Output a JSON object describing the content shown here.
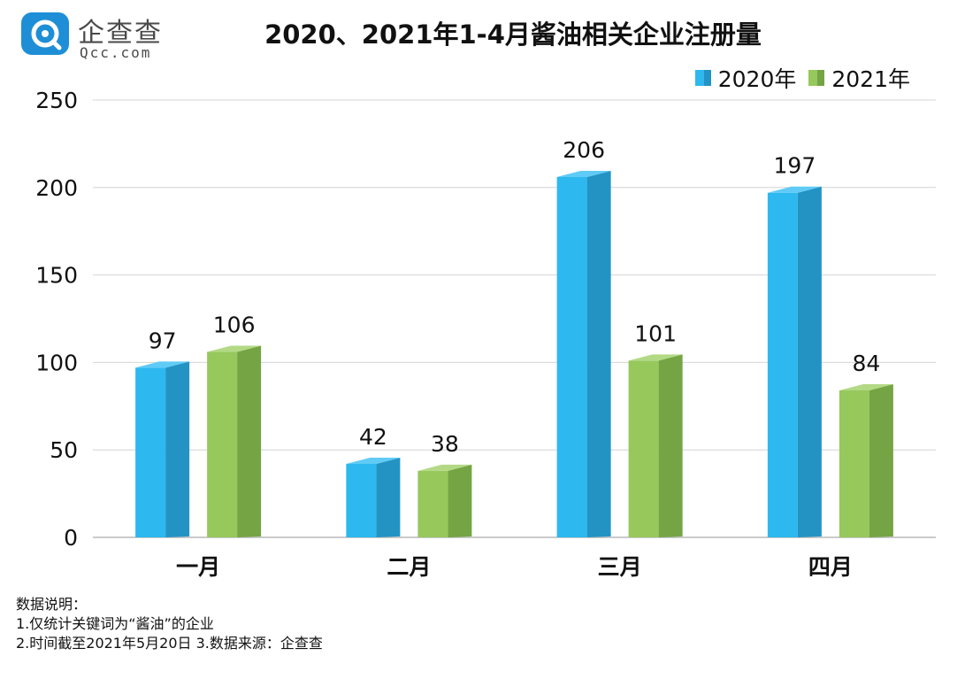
{
  "logo": {
    "name_cn": "企查查",
    "name_en": "Qcc.com"
  },
  "chart_data": {
    "type": "bar",
    "title": "2020、2021年1-4月酱油相关企业注册量",
    "categories": [
      "一月",
      "二月",
      "三月",
      "四月"
    ],
    "series": [
      {
        "name": "2020年",
        "values": [
          97,
          42,
          206,
          197
        ],
        "color": "#2db8f0",
        "side_color": "#2393c4",
        "top_color": "#5fcbf6"
      },
      {
        "name": "2021年",
        "values": [
          106,
          38,
          101,
          84
        ],
        "color": "#96c85c",
        "side_color": "#74a443",
        "top_color": "#b3d985"
      }
    ],
    "ylim": [
      0,
      250
    ],
    "yticks": [
      0,
      50,
      100,
      150,
      200,
      250
    ],
    "grid": true,
    "legend": "top-right",
    "xlabel": "",
    "ylabel": ""
  },
  "notes": {
    "heading": "数据说明：",
    "line1": "1.仅统计关键词为“酱油”的企业",
    "line2": "2.时间截至2021年5月20日   3.数据来源：企查查"
  }
}
